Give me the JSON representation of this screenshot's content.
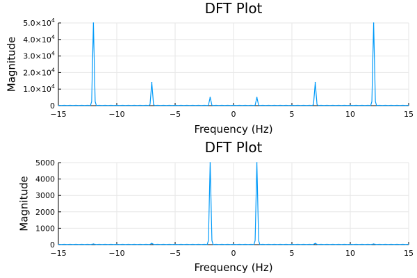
{
  "chart_data": [
    {
      "type": "line",
      "title": "DFT Plot",
      "xlabel": "Frequency (Hz)",
      "ylabel": "Magnitude",
      "xlim": [
        -15,
        15
      ],
      "ylim": [
        0,
        50000
      ],
      "xticks": [
        -15,
        -10,
        -5,
        0,
        5,
        10,
        15
      ],
      "xtick_labels": [
        "−15",
        "−10",
        "−5",
        "0",
        "5",
        "10",
        "15"
      ],
      "yticks": [
        0,
        10000,
        20000,
        30000,
        40000,
        50000
      ],
      "ytick_labels": [
        {
          "mantissa": "0",
          "exponent": ""
        },
        {
          "mantissa": "1.0×10",
          "exponent": "4"
        },
        {
          "mantissa": "2.0×10",
          "exponent": "4"
        },
        {
          "mantissa": "3.0×10",
          "exponent": "4"
        },
        {
          "mantissa": "4.0×10",
          "exponent": "4"
        },
        {
          "mantissa": "5.0×10",
          "exponent": "4"
        }
      ],
      "grid": true,
      "legend": "none",
      "color": "#009af9",
      "baseline": 200,
      "peaks": [
        {
          "x": -12,
          "y": 50000
        },
        {
          "x": -7,
          "y": 14000
        },
        {
          "x": -2,
          "y": 5000
        },
        {
          "x": 2,
          "y": 5000
        },
        {
          "x": 7,
          "y": 14000
        },
        {
          "x": 12,
          "y": 50000
        }
      ]
    },
    {
      "type": "line",
      "title": "DFT Plot",
      "xlabel": "Frequency (Hz)",
      "ylabel": "Magnitude",
      "xlim": [
        -15,
        15
      ],
      "ylim": [
        0,
        5000
      ],
      "xticks": [
        -15,
        -10,
        -5,
        0,
        5,
        10,
        15
      ],
      "xtick_labels": [
        "−15",
        "−10",
        "−5",
        "0",
        "5",
        "10",
        "15"
      ],
      "yticks": [
        0,
        1000,
        2000,
        3000,
        4000,
        5000
      ],
      "ytick_labels": [
        {
          "mantissa": "0",
          "exponent": ""
        },
        {
          "mantissa": "1000",
          "exponent": ""
        },
        {
          "mantissa": "2000",
          "exponent": ""
        },
        {
          "mantissa": "3000",
          "exponent": ""
        },
        {
          "mantissa": "4000",
          "exponent": ""
        },
        {
          "mantissa": "5000",
          "exponent": ""
        }
      ],
      "grid": true,
      "legend": "none",
      "color": "#009af9",
      "baseline": 20,
      "peaks": [
        {
          "x": -12,
          "y": 40
        },
        {
          "x": -7,
          "y": 80
        },
        {
          "x": -2,
          "y": 5000
        },
        {
          "x": 2,
          "y": 5000
        },
        {
          "x": 7,
          "y": 80
        },
        {
          "x": 12,
          "y": 40
        }
      ]
    }
  ]
}
